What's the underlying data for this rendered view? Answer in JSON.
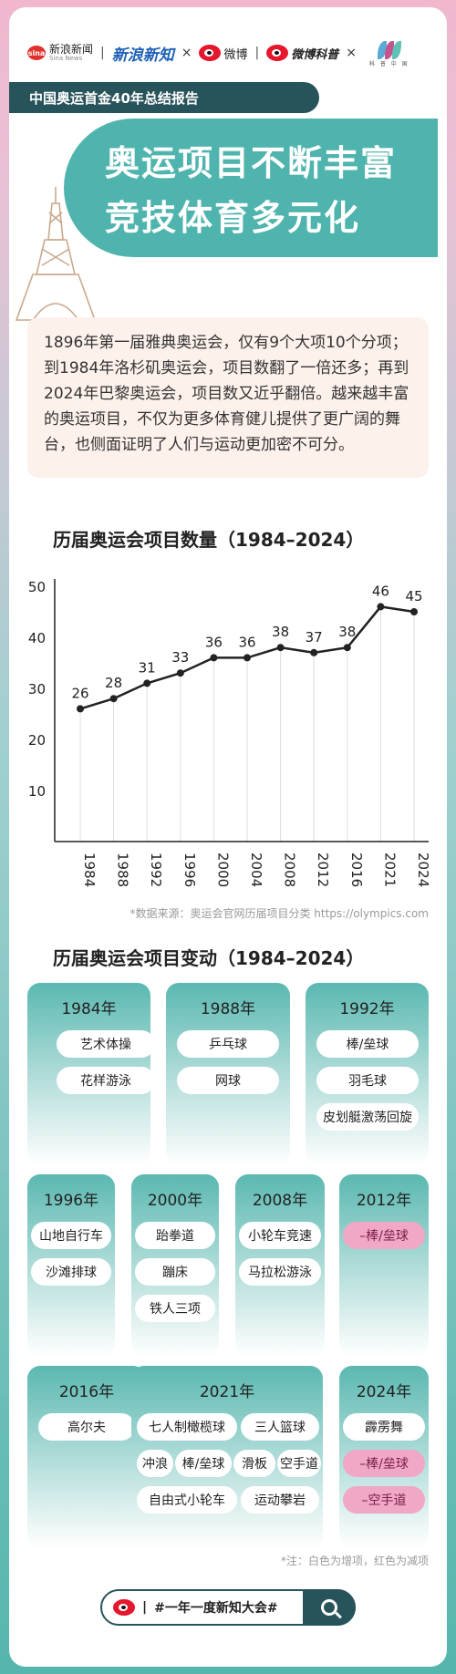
{
  "logos": {
    "sina_mark": "sina",
    "sina_name": "新浪新闻",
    "sina_sub": "Sina News",
    "xinlang": "新浪新知",
    "weibo": "微博",
    "weibo_kepu": "微博科普",
    "kxzg": "科 普 中 国",
    "times": "×",
    "sep": "|"
  },
  "report_label": "中国奥运首金40年总结报告",
  "hero": {
    "line1": "奥运项目不断丰富",
    "line2": "竞技体育多元化"
  },
  "intro": "1896年第一届雅典奥运会，仅有9个大项10个分项；到1984年洛杉矶奥运会，项目数翻了一倍还多；再到2024年巴黎奥运会，项目数又近乎翻倍。越来越丰富的奥运项目，不仅为更多体育健儿提供了更广阔的舞台，也侧面证明了人们与运动更加密不可分。",
  "chart_title": "历届奥运会项目数量（1984–2024）",
  "chart_data": {
    "type": "line",
    "title": "历届奥运会项目数量（1984–2024）",
    "categories": [
      "1984",
      "1988",
      "1992",
      "1996",
      "2000",
      "2004",
      "2008",
      "2012",
      "2016",
      "2021",
      "2024"
    ],
    "values": [
      26,
      28,
      31,
      33,
      36,
      36,
      38,
      37,
      38,
      46,
      45
    ],
    "ylim": [
      0,
      50
    ],
    "yticks": [
      10,
      20,
      30,
      40,
      50
    ],
    "grid": "vertical",
    "colors": {
      "line": "#222222",
      "grid": "#dddddd"
    }
  },
  "source": "*数据来源：奥运会官网历届项目分类 https://olympics.com",
  "change_title": "历届奥运会项目变动（1984–2024）",
  "changes": [
    {
      "year": "1984年",
      "items": [
        {
          "text": "艺术体操",
          "removed": false
        },
        {
          "text": "花样游泳",
          "removed": false
        }
      ]
    },
    {
      "year": "1988年",
      "items": [
        {
          "text": "乒乓球",
          "removed": false
        },
        {
          "text": "网球",
          "removed": false
        }
      ]
    },
    {
      "year": "1992年",
      "items": [
        {
          "text": "棒/垒球",
          "removed": false
        },
        {
          "text": "羽毛球",
          "removed": false
        },
        {
          "text": "皮划艇激荡回旋",
          "removed": false
        }
      ]
    },
    {
      "year": "1996年",
      "items": [
        {
          "text": "山地自行车",
          "removed": false
        },
        {
          "text": "沙滩排球",
          "removed": false
        }
      ]
    },
    {
      "year": "2000年",
      "items": [
        {
          "text": "跆拳道",
          "removed": false
        },
        {
          "text": "蹦床",
          "removed": false
        },
        {
          "text": "铁人三项",
          "removed": false
        }
      ]
    },
    {
      "year": "2008年",
      "items": [
        {
          "text": "小轮车竞速",
          "removed": false
        },
        {
          "text": "马拉松游泳",
          "removed": false
        }
      ]
    },
    {
      "year": "2012年",
      "items": [
        {
          "text": "–棒/垒球",
          "removed": true
        }
      ]
    },
    {
      "year": "2016年",
      "items": [
        {
          "text": "高尔夫",
          "removed": false
        }
      ]
    },
    {
      "year": "2021年",
      "items": [
        {
          "text": "七人制橄榄球",
          "removed": false
        },
        {
          "text": "三人篮球",
          "removed": false
        },
        {
          "text": "冲浪",
          "removed": false
        },
        {
          "text": "棒/垒球",
          "removed": false
        },
        {
          "text": "滑板",
          "removed": false
        },
        {
          "text": "空手道",
          "removed": false
        },
        {
          "text": "自由式小轮车",
          "removed": false
        },
        {
          "text": "运动攀岩",
          "removed": false
        }
      ]
    },
    {
      "year": "2024年",
      "items": [
        {
          "text": "霹雳舞",
          "removed": false
        },
        {
          "text": "–棒/垒球",
          "removed": true
        },
        {
          "text": "–空手道",
          "removed": true
        }
      ]
    }
  ],
  "note": "*注：白色为增项，红色为减项",
  "search": {
    "hashtag": "#一年一度新知大会#",
    "divider": "|"
  },
  "colors": {
    "teal": "#4fb4ad",
    "dark_teal": "#27535a",
    "removed_pink": "#f1a7c6"
  }
}
